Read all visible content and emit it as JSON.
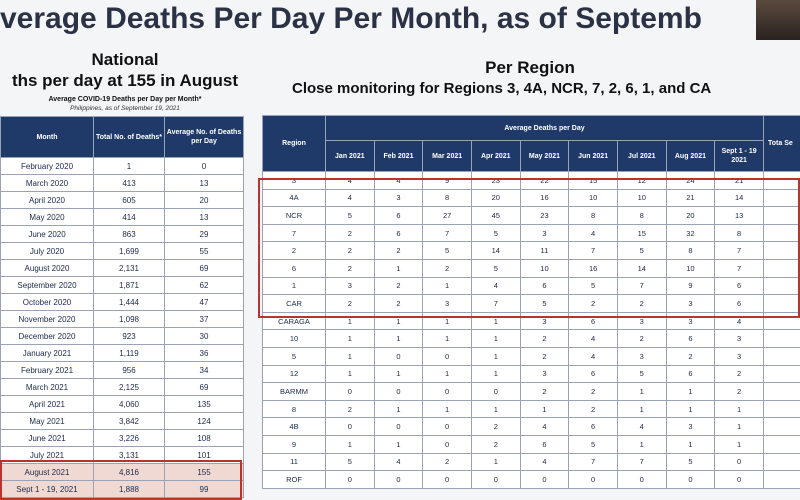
{
  "header": {
    "title": "verage Deaths Per Day Per Month, as of Septemb"
  },
  "national": {
    "heading": "National",
    "subheading": "ths per day at 155 in August",
    "caption": "Average COVID-19 Deaths per Day per Month*",
    "subcaption": "Philippines, as of September 19, 2021",
    "columns": [
      "Month",
      "Total No. of Deaths*",
      "Average No. of Deaths per Day"
    ],
    "rows": [
      [
        "February 2020",
        "1",
        "0"
      ],
      [
        "March 2020",
        "413",
        "13"
      ],
      [
        "April 2020",
        "605",
        "20"
      ],
      [
        "May 2020",
        "414",
        "13"
      ],
      [
        "June 2020",
        "863",
        "29"
      ],
      [
        "July 2020",
        "1,699",
        "55"
      ],
      [
        "August 2020",
        "2,131",
        "69"
      ],
      [
        "September 2020",
        "1,871",
        "62"
      ],
      [
        "October 2020",
        "1,444",
        "47"
      ],
      [
        "November 2020",
        "1,098",
        "37"
      ],
      [
        "December 2020",
        "923",
        "30"
      ],
      [
        "January 2021",
        "1,119",
        "36"
      ],
      [
        "February 2021",
        "956",
        "34"
      ],
      [
        "March 2021",
        "2,125",
        "69"
      ],
      [
        "April 2021",
        "4,060",
        "135"
      ],
      [
        "May 2021",
        "3,842",
        "124"
      ],
      [
        "June 2021",
        "3,226",
        "108"
      ],
      [
        "July 2021",
        "3,131",
        "101"
      ],
      [
        "August 2021",
        "4,816",
        "155"
      ],
      [
        "Sept 1 - 19, 2021",
        "1,888",
        "99"
      ]
    ]
  },
  "regional": {
    "heading": "Per Region",
    "subheading": "Close monitoring for Regions 3, 4A, NCR, 7, 2, 6, 1, and CA",
    "region_header": "Region",
    "group_header": "Average Deaths per Day",
    "total_header": "Tota Se",
    "months": [
      "Jan 2021",
      "Feb 2021",
      "Mar 2021",
      "Apr 2021",
      "May 2021",
      "Jun 2021",
      "Jul 2021",
      "Aug 2021",
      "Sept 1 - 19 2021"
    ],
    "rows": [
      [
        "3",
        "4",
        "4",
        "9",
        "23",
        "22",
        "15",
        "12",
        "24",
        "21"
      ],
      [
        "4A",
        "4",
        "3",
        "8",
        "20",
        "16",
        "10",
        "10",
        "21",
        "14"
      ],
      [
        "NCR",
        "5",
        "6",
        "27",
        "45",
        "23",
        "8",
        "8",
        "20",
        "13"
      ],
      [
        "7",
        "2",
        "6",
        "7",
        "5",
        "3",
        "4",
        "15",
        "32",
        "8"
      ],
      [
        "2",
        "2",
        "2",
        "5",
        "14",
        "11",
        "7",
        "5",
        "8",
        "7"
      ],
      [
        "6",
        "2",
        "1",
        "2",
        "5",
        "10",
        "16",
        "14",
        "10",
        "7"
      ],
      [
        "1",
        "3",
        "2",
        "1",
        "4",
        "6",
        "5",
        "7",
        "9",
        "6"
      ],
      [
        "CAR",
        "2",
        "2",
        "3",
        "7",
        "5",
        "2",
        "2",
        "3",
        "6"
      ],
      [
        "CARAGA",
        "1",
        "1",
        "1",
        "1",
        "3",
        "6",
        "3",
        "3",
        "4"
      ],
      [
        "10",
        "1",
        "1",
        "1",
        "1",
        "2",
        "4",
        "2",
        "6",
        "3"
      ],
      [
        "5",
        "1",
        "0",
        "0",
        "1",
        "2",
        "4",
        "3",
        "2",
        "3"
      ],
      [
        "12",
        "1",
        "1",
        "1",
        "1",
        "3",
        "6",
        "5",
        "6",
        "2"
      ],
      [
        "BARMM",
        "0",
        "0",
        "0",
        "0",
        "2",
        "2",
        "1",
        "1",
        "2"
      ],
      [
        "8",
        "2",
        "1",
        "1",
        "1",
        "1",
        "2",
        "1",
        "1",
        "1"
      ],
      [
        "4B",
        "0",
        "0",
        "0",
        "2",
        "4",
        "6",
        "4",
        "3",
        "1"
      ],
      [
        "9",
        "1",
        "1",
        "0",
        "2",
        "6",
        "5",
        "1",
        "1",
        "1"
      ],
      [
        "11",
        "5",
        "4",
        "2",
        "1",
        "4",
        "7",
        "7",
        "5",
        "0"
      ],
      [
        "ROF",
        "0",
        "0",
        "0",
        "0",
        "0",
        "0",
        "0",
        "0",
        "0"
      ]
    ]
  }
}
